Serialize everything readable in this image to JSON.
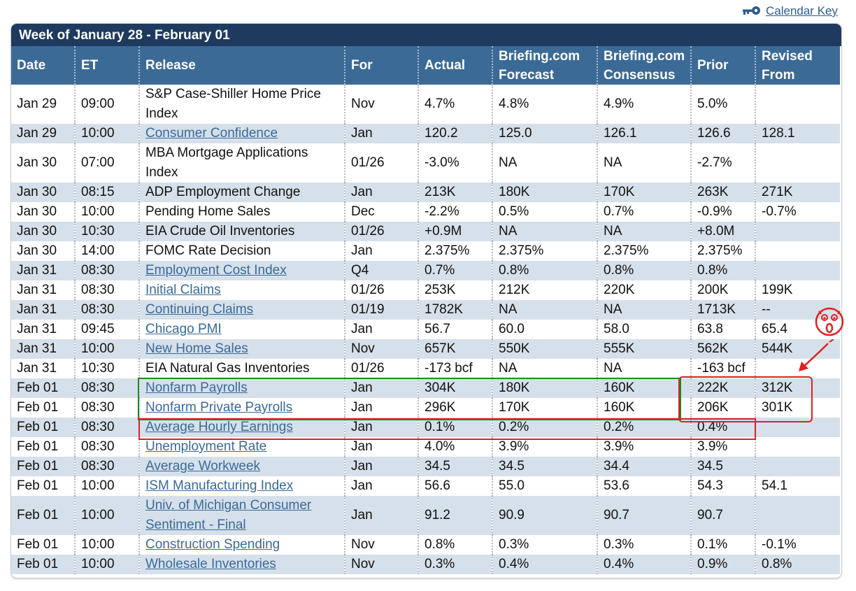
{
  "top": {
    "calendar_key": "Calendar Key"
  },
  "panel": {
    "title": "Week of January 28 - February 01"
  },
  "headers": [
    "Date",
    "ET",
    "Release",
    "For",
    "Actual",
    "Briefing.com Forecast",
    "Briefing.com Consensus",
    "Prior",
    "Revised From"
  ],
  "rows": [
    {
      "date": "Jan 29",
      "et": "09:00",
      "release": "S&P Case-Shiller Home Price Index",
      "link": false,
      "for": "Nov",
      "actual": "4.7%",
      "forecast": "4.8%",
      "consensus": "4.9%",
      "prior": "5.0%",
      "revised": ""
    },
    {
      "date": "Jan 29",
      "et": "10:00",
      "release": "Consumer Confidence",
      "link": true,
      "for": "Jan",
      "actual": "120.2",
      "forecast": "125.0",
      "consensus": "126.1",
      "prior": "126.6",
      "revised": "128.1"
    },
    {
      "date": "Jan 30",
      "et": "07:00",
      "release": "MBA Mortgage Applications Index",
      "link": false,
      "for": "01/26",
      "actual": "-3.0%",
      "forecast": "NA",
      "consensus": "NA",
      "prior": "-2.7%",
      "revised": ""
    },
    {
      "date": "Jan 30",
      "et": "08:15",
      "release": "ADP Employment Change",
      "link": false,
      "for": "Jan",
      "actual": "213K",
      "forecast": "180K",
      "consensus": "170K",
      "prior": "263K",
      "revised": "271K"
    },
    {
      "date": "Jan 30",
      "et": "10:00",
      "release": "Pending Home Sales",
      "link": false,
      "for": "Dec",
      "actual": "-2.2%",
      "forecast": "0.5%",
      "consensus": "0.7%",
      "prior": "-0.9%",
      "revised": "-0.7%"
    },
    {
      "date": "Jan 30",
      "et": "10:30",
      "release": "EIA Crude Oil Inventories",
      "link": false,
      "for": "01/26",
      "actual": "+0.9M",
      "forecast": "NA",
      "consensus": "NA",
      "prior": "+8.0M",
      "revised": ""
    },
    {
      "date": "Jan 30",
      "et": "14:00",
      "release": "FOMC Rate Decision",
      "link": false,
      "for": "Jan",
      "actual": "2.375%",
      "forecast": "2.375%",
      "consensus": "2.375%",
      "prior": "2.375%",
      "revised": ""
    },
    {
      "date": "Jan 31",
      "et": "08:30",
      "release": "Employment Cost Index",
      "link": true,
      "for": "Q4",
      "actual": "0.7%",
      "forecast": "0.8%",
      "consensus": "0.8%",
      "prior": "0.8%",
      "revised": ""
    },
    {
      "date": "Jan 31",
      "et": "08:30",
      "release": "Initial Claims",
      "link": true,
      "for": "01/26",
      "actual": "253K",
      "forecast": "212K",
      "consensus": "220K",
      "prior": "200K",
      "revised": "199K"
    },
    {
      "date": "Jan 31",
      "et": "08:30",
      "release": "Continuing Claims",
      "link": true,
      "for": "01/19",
      "actual": "1782K",
      "forecast": "NA",
      "consensus": "NA",
      "prior": "1713K",
      "revised": "--"
    },
    {
      "date": "Jan 31",
      "et": "09:45",
      "release": "Chicago PMI",
      "link": true,
      "for": "Jan",
      "actual": "56.7",
      "forecast": "60.0",
      "consensus": "58.0",
      "prior": "63.8",
      "revised": "65.4"
    },
    {
      "date": "Jan 31",
      "et": "10:00",
      "release": "New Home Sales",
      "link": true,
      "for": "Nov",
      "actual": "657K",
      "forecast": "550K",
      "consensus": "555K",
      "prior": "562K",
      "revised": "544K"
    },
    {
      "date": "Jan 31",
      "et": "10:30",
      "release": "EIA Natural Gas Inventories",
      "link": false,
      "for": "01/26",
      "actual": "-173 bcf",
      "forecast": "NA",
      "consensus": "NA",
      "prior": "-163 bcf",
      "revised": ""
    },
    {
      "date": "Feb 01",
      "et": "08:30",
      "release": "Nonfarm Payrolls",
      "link": true,
      "for": "Jan",
      "actual": "304K",
      "forecast": "180K",
      "consensus": "160K",
      "prior": "222K",
      "revised": "312K"
    },
    {
      "date": "Feb 01",
      "et": "08:30",
      "release": "Nonfarm Private Payrolls",
      "link": true,
      "for": "Jan",
      "actual": "296K",
      "forecast": "170K",
      "consensus": "160K",
      "prior": "206K",
      "revised": "301K"
    },
    {
      "date": "Feb 01",
      "et": "08:30",
      "release": "Average Hourly Earnings",
      "link": true,
      "for": "Jan",
      "actual": "0.1%",
      "forecast": "0.2%",
      "consensus": "0.2%",
      "prior": "0.4%",
      "revised": ""
    },
    {
      "date": "Feb 01",
      "et": "08:30",
      "release": "Unemployment Rate",
      "link": true,
      "for": "Jan",
      "actual": "4.0%",
      "forecast": "3.9%",
      "consensus": "3.9%",
      "prior": "3.9%",
      "revised": ""
    },
    {
      "date": "Feb 01",
      "et": "08:30",
      "release": "Average Workweek",
      "link": true,
      "for": "Jan",
      "actual": "34.5",
      "forecast": "34.5",
      "consensus": "34.4",
      "prior": "34.5",
      "revised": ""
    },
    {
      "date": "Feb 01",
      "et": "10:00",
      "release": "ISM Manufacturing Index",
      "link": true,
      "for": "Jan",
      "actual": "56.6",
      "forecast": "55.0",
      "consensus": "53.6",
      "prior": "54.3",
      "revised": "54.1"
    },
    {
      "date": "Feb 01",
      "et": "10:00",
      "release": "Univ. of Michigan Consumer Sentiment - Final",
      "link": true,
      "for": "Jan",
      "actual": "91.2",
      "forecast": "90.9",
      "consensus": "90.7",
      "prior": "90.7",
      "revised": ""
    },
    {
      "date": "Feb 01",
      "et": "10:00",
      "release": "Construction Spending",
      "link": true,
      "for": "Nov",
      "actual": "0.8%",
      "forecast": "0.3%",
      "consensus": "0.3%",
      "prior": "0.1%",
      "revised": "-0.1%"
    },
    {
      "date": "Feb 01",
      "et": "10:00",
      "release": "Wholesale Inventories",
      "link": true,
      "for": "Nov",
      "actual": "0.3%",
      "forecast": "0.4%",
      "consensus": "0.4%",
      "prior": "0.9%",
      "revised": "0.8%"
    }
  ],
  "colors": {
    "title_bar": "#1f3a5f",
    "header": "#3c6a97",
    "stripe": "#d6e0ea",
    "link": "#3a6a9a",
    "annotation_green": "#1a8a1a",
    "annotation_red": "#e02020"
  },
  "icons": {
    "calendar_key": "key-icon",
    "annotation": "surprised-face-icon"
  }
}
